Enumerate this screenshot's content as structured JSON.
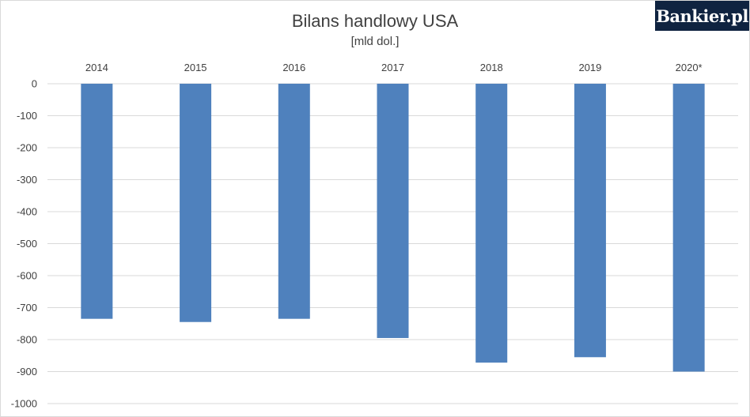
{
  "header": {
    "title": "Bilans handlowy USA",
    "subtitle": "[mld dol.]",
    "logo_text": "Bankier.pl"
  },
  "colors": {
    "bar": "#4f81bd",
    "grid": "#d9d9d9",
    "text": "#404040",
    "logo_bg": "#0f2340"
  },
  "chart_data": {
    "type": "bar",
    "title": "Bilans handlowy USA",
    "subtitle": "[mld dol.]",
    "categories": [
      "2014",
      "2015",
      "2016",
      "2017",
      "2018",
      "2019",
      "2020*"
    ],
    "values": [
      -735,
      -745,
      -735,
      -795,
      -872,
      -855,
      -900
    ],
    "ylim": [
      -1000,
      0
    ],
    "yticks": [
      0,
      -100,
      -200,
      -300,
      -400,
      -500,
      -600,
      -700,
      -800,
      -900,
      -1000
    ],
    "category_axis_position": "top",
    "grid": true,
    "legend": "none"
  }
}
